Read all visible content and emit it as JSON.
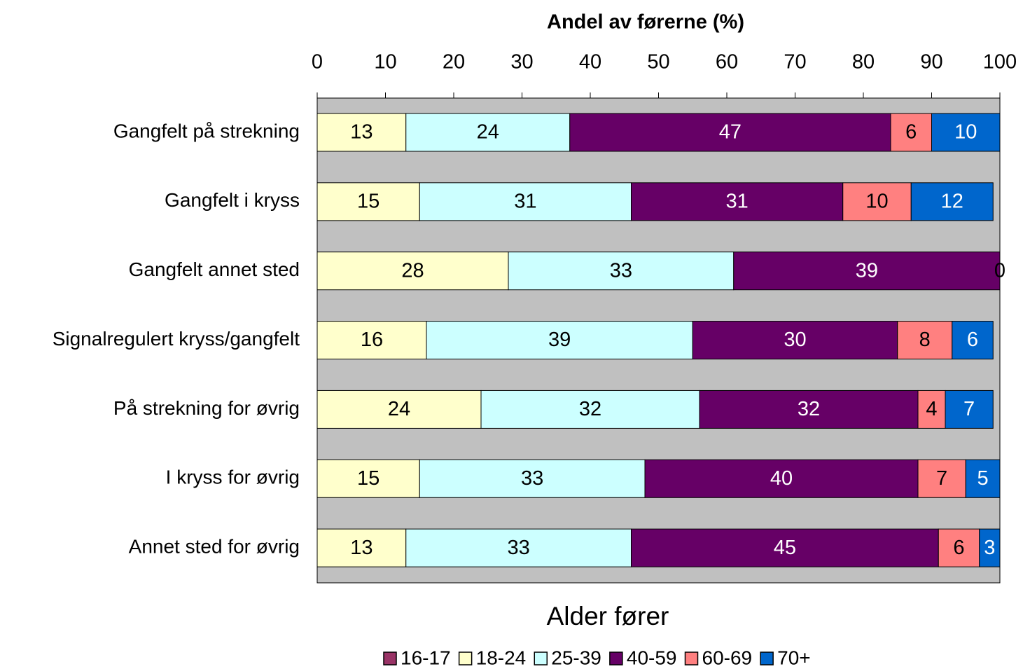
{
  "chart_data": {
    "type": "stacked_barh",
    "title": "Andel av førerne (%)",
    "legend_title": "Alder fører",
    "categories": [
      "Gangfelt på strekning",
      "Gangfelt i kryss",
      "Gangfelt annet sted",
      "Signalregulert kryss/gangfelt",
      "På strekning for øvrig",
      "I kryss for øvrig",
      "Annet sted for øvrig"
    ],
    "series": [
      {
        "name": "16-17",
        "color": "#993366",
        "values": [
          null,
          null,
          null,
          null,
          null,
          null,
          null
        ]
      },
      {
        "name": "18-24",
        "color": "#ffffcc",
        "values": [
          13,
          15,
          28,
          16,
          24,
          15,
          13
        ]
      },
      {
        "name": "25-39",
        "color": "#ccffff",
        "values": [
          24,
          31,
          33,
          39,
          32,
          33,
          33
        ]
      },
      {
        "name": "40-59",
        "color": "#660066",
        "values": [
          47,
          31,
          39,
          30,
          32,
          40,
          45
        ]
      },
      {
        "name": "60-69",
        "color": "#ff8080",
        "values": [
          6,
          10,
          0,
          8,
          4,
          7,
          6
        ]
      },
      {
        "name": "70+",
        "color": "#0066cc",
        "values": [
          10,
          12,
          null,
          6,
          7,
          5,
          3
        ]
      }
    ],
    "xlim": [
      0,
      100
    ],
    "xticks": [
      0,
      10,
      20,
      30,
      40,
      50,
      60,
      70,
      80,
      90,
      100
    ],
    "plot_background": "#c0c0c0",
    "legend": "bottom"
  }
}
